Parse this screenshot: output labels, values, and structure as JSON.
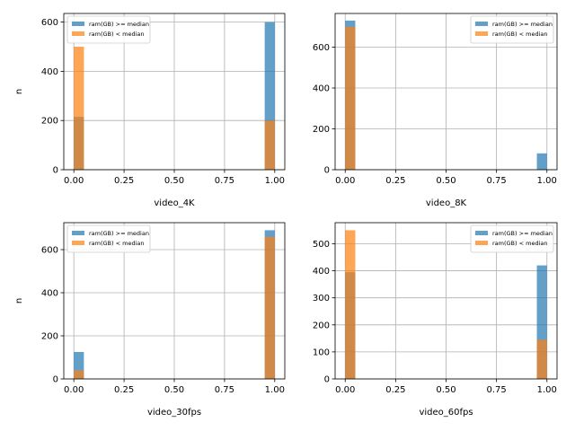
{
  "colors": {
    "series_high": "#1f77b4",
    "series_low": "#ff7f0e",
    "grid": "#b0b0b0",
    "axis": "#000000"
  },
  "chart_data": [
    {
      "type": "bar",
      "subtype": "overlaid-histogram",
      "xlabel": "video_4K",
      "ylabel": "n",
      "xlim": [
        -0.05,
        1.05
      ],
      "ylim": [
        0,
        635
      ],
      "xticks": [
        "0.00",
        "0.25",
        "0.50",
        "0.75",
        "1.00"
      ],
      "yticks": [
        "0",
        "200",
        "400",
        "600"
      ],
      "grid": true,
      "legend": "upper-left",
      "bin_width": 0.05,
      "series": [
        {
          "name": "ram(GB) >= median",
          "x": [
            0,
            0.95
          ],
          "values": [
            215,
            600
          ]
        },
        {
          "name": "ram(GB) < median",
          "x": [
            0,
            0.95
          ],
          "values": [
            500,
            200
          ]
        }
      ]
    },
    {
      "type": "bar",
      "subtype": "overlaid-histogram",
      "xlabel": "video_8K",
      "ylabel": "",
      "xlim": [
        -0.05,
        1.05
      ],
      "ylim": [
        0,
        765
      ],
      "xticks": [
        "0.00",
        "0.25",
        "0.50",
        "0.75",
        "1.00"
      ],
      "yticks": [
        "0",
        "200",
        "400",
        "600"
      ],
      "grid": true,
      "legend": "upper-right",
      "bin_width": 0.05,
      "series": [
        {
          "name": "ram(GB) >= median",
          "x": [
            0,
            0.95
          ],
          "values": [
            730,
            80
          ]
        },
        {
          "name": "ram(GB) < median",
          "x": [
            0,
            0.95
          ],
          "values": [
            700,
            0
          ]
        }
      ]
    },
    {
      "type": "bar",
      "subtype": "overlaid-histogram",
      "xlabel": "video_30fps",
      "ylabel": "n",
      "xlim": [
        -0.05,
        1.05
      ],
      "ylim": [
        0,
        725
      ],
      "xticks": [
        "0.00",
        "0.25",
        "0.50",
        "0.75",
        "1.00"
      ],
      "yticks": [
        "0",
        "200",
        "400",
        "600"
      ],
      "grid": true,
      "legend": "upper-left",
      "bin_width": 0.05,
      "series": [
        {
          "name": "ram(GB) >= median",
          "x": [
            0,
            0.95
          ],
          "values": [
            125,
            690
          ]
        },
        {
          "name": "ram(GB) < median",
          "x": [
            0,
            0.95
          ],
          "values": [
            40,
            660
          ]
        }
      ]
    },
    {
      "type": "bar",
      "subtype": "overlaid-histogram",
      "xlabel": "video_60fps",
      "ylabel": "",
      "xlim": [
        -0.05,
        1.05
      ],
      "ylim": [
        0,
        578
      ],
      "xticks": [
        "0.00",
        "0.25",
        "0.50",
        "0.75",
        "1.00"
      ],
      "yticks": [
        "0",
        "100",
        "200",
        "300",
        "400",
        "500"
      ],
      "grid": true,
      "legend": "upper-right",
      "bin_width": 0.05,
      "series": [
        {
          "name": "ram(GB) >= median",
          "x": [
            0,
            0.95
          ],
          "values": [
            395,
            420
          ]
        },
        {
          "name": "ram(GB) < median",
          "x": [
            0,
            0.95
          ],
          "values": [
            550,
            145
          ]
        }
      ]
    }
  ]
}
